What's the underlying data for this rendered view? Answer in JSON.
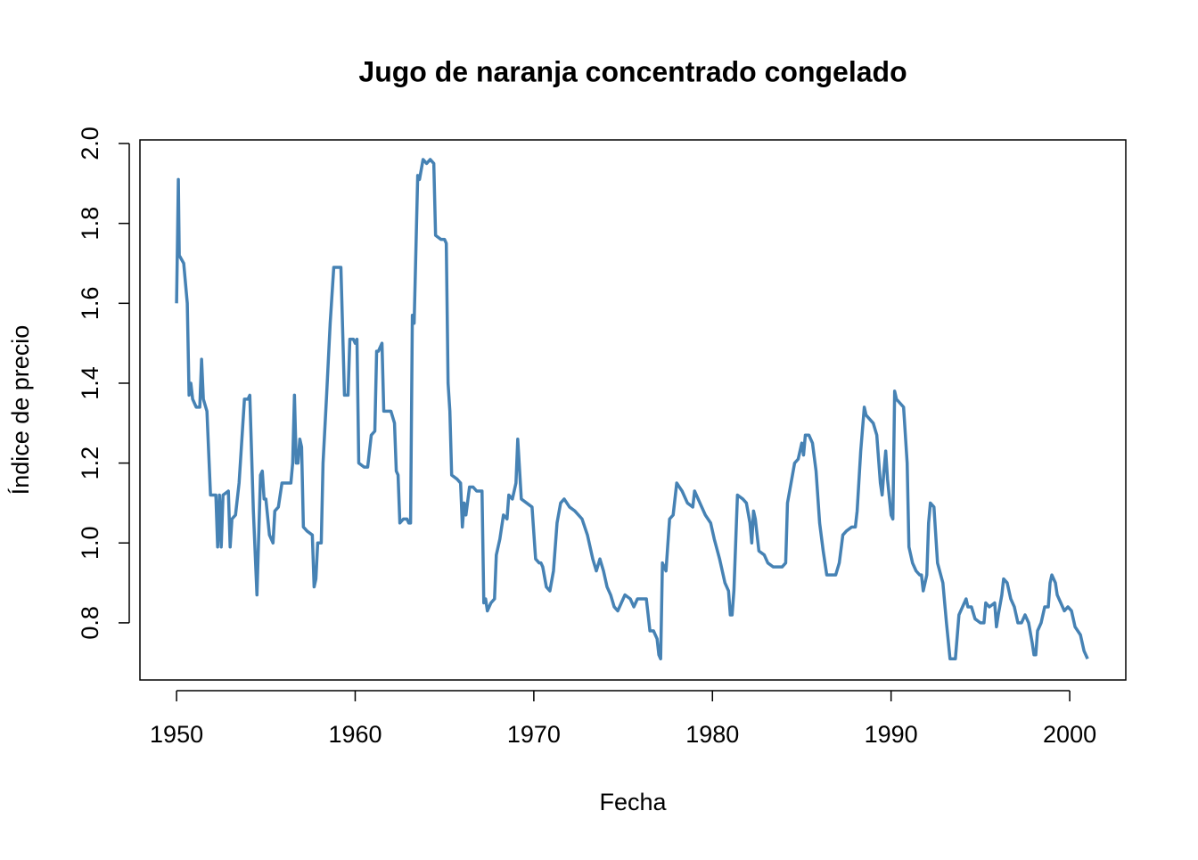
{
  "chart_data": {
    "type": "line",
    "title": "Jugo de naranja concentrado congelado",
    "x_label": "Fecha",
    "y_label": "Índice de precio",
    "x": [
      1950.0,
      1950.05,
      1950.1,
      1950.15,
      1950.4,
      1950.6,
      1950.7,
      1950.8,
      1950.9,
      1951.1,
      1951.3,
      1951.4,
      1951.5,
      1951.7,
      1951.9,
      1952.2,
      1952.3,
      1952.4,
      1952.5,
      1952.6,
      1952.9,
      1953.0,
      1953.1,
      1953.3,
      1953.5,
      1953.8,
      1954.0,
      1954.1,
      1954.3,
      1954.5,
      1954.7,
      1954.8,
      1954.9,
      1955.0,
      1955.2,
      1955.4,
      1955.5,
      1955.7,
      1955.9,
      1956.2,
      1956.4,
      1956.5,
      1956.6,
      1956.7,
      1956.8,
      1956.9,
      1957.0,
      1957.1,
      1957.3,
      1957.6,
      1957.7,
      1957.8,
      1957.9,
      1958.1,
      1958.2,
      1958.4,
      1958.6,
      1958.8,
      1959.2,
      1959.4,
      1959.6,
      1959.7,
      1959.9,
      1960.0,
      1960.1,
      1960.2,
      1960.5,
      1960.7,
      1960.9,
      1961.1,
      1961.2,
      1961.3,
      1961.5,
      1961.6,
      1962.0,
      1962.2,
      1962.3,
      1962.4,
      1962.5,
      1962.7,
      1962.9,
      1963.0,
      1963.1,
      1963.2,
      1963.3,
      1963.5,
      1963.6,
      1963.8,
      1964.0,
      1964.2,
      1964.4,
      1964.5,
      1964.8,
      1965.0,
      1965.1,
      1965.2,
      1965.3,
      1965.4,
      1965.7,
      1965.9,
      1966.0,
      1966.1,
      1966.2,
      1966.4,
      1966.6,
      1966.8,
      1967.1,
      1967.2,
      1967.3,
      1967.4,
      1967.6,
      1967.8,
      1967.9,
      1968.0,
      1968.1,
      1968.3,
      1968.5,
      1968.6,
      1968.8,
      1969.0,
      1969.1,
      1969.3,
      1969.6,
      1969.9,
      1970.1,
      1970.3,
      1970.4,
      1970.5,
      1970.7,
      1970.9,
      1971.1,
      1971.3,
      1971.5,
      1971.7,
      1972.0,
      1972.3,
      1972.5,
      1972.7,
      1973.0,
      1973.3,
      1973.5,
      1973.7,
      1973.9,
      1974.1,
      1974.3,
      1974.5,
      1974.7,
      1974.9,
      1975.1,
      1975.4,
      1975.6,
      1975.8,
      1976.0,
      1976.3,
      1976.5,
      1976.7,
      1976.9,
      1977.0,
      1977.1,
      1977.2,
      1977.4,
      1977.6,
      1977.8,
      1978.0,
      1978.3,
      1978.6,
      1978.9,
      1979.0,
      1979.3,
      1979.6,
      1979.9,
      1980.1,
      1980.4,
      1980.7,
      1980.9,
      1981.0,
      1981.1,
      1981.2,
      1981.4,
      1981.7,
      1981.9,
      1982.1,
      1982.2,
      1982.3,
      1982.4,
      1982.6,
      1982.9,
      1983.1,
      1983.4,
      1983.7,
      1983.9,
      1984.1,
      1984.2,
      1984.4,
      1984.6,
      1984.8,
      1985.0,
      1985.1,
      1985.2,
      1985.4,
      1985.6,
      1985.8,
      1986.0,
      1986.2,
      1986.4,
      1986.6,
      1986.9,
      1987.1,
      1987.3,
      1987.5,
      1987.8,
      1988.0,
      1988.1,
      1988.3,
      1988.5,
      1988.6,
      1988.8,
      1989.0,
      1989.2,
      1989.4,
      1989.5,
      1989.6,
      1989.7,
      1989.8,
      1990.0,
      1990.1,
      1990.2,
      1990.3,
      1990.5,
      1990.7,
      1990.9,
      1991.0,
      1991.2,
      1991.4,
      1991.6,
      1991.7,
      1991.8,
      1992.0,
      1992.1,
      1992.2,
      1992.4,
      1992.6,
      1992.9,
      1993.1,
      1993.3,
      1993.6,
      1993.8,
      1994.0,
      1994.2,
      1994.3,
      1994.5,
      1994.7,
      1995.0,
      1995.2,
      1995.3,
      1995.5,
      1995.8,
      1995.9,
      1996.0,
      1996.2,
      1996.3,
      1996.5,
      1996.7,
      1996.9,
      1997.1,
      1997.3,
      1997.5,
      1997.7,
      1997.9,
      1998.0,
      1998.1,
      1998.2,
      1998.4,
      1998.6,
      1998.8,
      1998.9,
      1999.0,
      1999.2,
      1999.3,
      1999.5,
      1999.7,
      1999.9,
      2000.1,
      2000.3,
      2000.6,
      2000.8,
      2001.0
    ],
    "series": [
      {
        "name": "Índice de precio",
        "color": "#4682b4",
        "values": [
          1.6,
          1.75,
          1.91,
          1.72,
          1.7,
          1.6,
          1.37,
          1.4,
          1.36,
          1.34,
          1.34,
          1.46,
          1.36,
          1.33,
          1.12,
          1.12,
          0.99,
          1.12,
          0.99,
          1.12,
          1.13,
          0.99,
          1.06,
          1.07,
          1.15,
          1.36,
          1.36,
          1.37,
          1.08,
          0.87,
          1.17,
          1.18,
          1.11,
          1.11,
          1.02,
          1.0,
          1.08,
          1.09,
          1.15,
          1.15,
          1.15,
          1.2,
          1.37,
          1.2,
          1.2,
          1.26,
          1.24,
          1.04,
          1.03,
          1.02,
          0.89,
          0.91,
          1.0,
          1.0,
          1.2,
          1.37,
          1.55,
          1.69,
          1.69,
          1.37,
          1.37,
          1.51,
          1.51,
          1.5,
          1.51,
          1.2,
          1.19,
          1.19,
          1.27,
          1.28,
          1.48,
          1.48,
          1.5,
          1.33,
          1.33,
          1.3,
          1.18,
          1.17,
          1.05,
          1.06,
          1.06,
          1.05,
          1.05,
          1.57,
          1.55,
          1.92,
          1.91,
          1.96,
          1.95,
          1.96,
          1.95,
          1.77,
          1.76,
          1.76,
          1.75,
          1.4,
          1.33,
          1.17,
          1.16,
          1.15,
          1.04,
          1.1,
          1.07,
          1.14,
          1.14,
          1.13,
          1.13,
          0.85,
          0.86,
          0.83,
          0.85,
          0.86,
          0.97,
          0.99,
          1.01,
          1.07,
          1.06,
          1.12,
          1.11,
          1.15,
          1.26,
          1.11,
          1.1,
          1.09,
          0.96,
          0.95,
          0.95,
          0.94,
          0.89,
          0.88,
          0.93,
          1.05,
          1.1,
          1.11,
          1.09,
          1.08,
          1.07,
          1.06,
          1.02,
          0.96,
          0.93,
          0.96,
          0.93,
          0.89,
          0.87,
          0.84,
          0.83,
          0.85,
          0.87,
          0.86,
          0.84,
          0.86,
          0.86,
          0.86,
          0.78,
          0.78,
          0.76,
          0.72,
          0.71,
          0.95,
          0.93,
          1.06,
          1.07,
          1.15,
          1.13,
          1.1,
          1.09,
          1.13,
          1.1,
          1.07,
          1.05,
          1.01,
          0.96,
          0.9,
          0.88,
          0.82,
          0.82,
          0.88,
          1.12,
          1.11,
          1.1,
          1.05,
          1.0,
          1.08,
          1.06,
          0.98,
          0.97,
          0.95,
          0.94,
          0.94,
          0.94,
          0.95,
          1.1,
          1.15,
          1.2,
          1.21,
          1.25,
          1.22,
          1.27,
          1.27,
          1.25,
          1.18,
          1.05,
          0.98,
          0.92,
          0.92,
          0.92,
          0.95,
          1.02,
          1.03,
          1.04,
          1.04,
          1.08,
          1.23,
          1.34,
          1.32,
          1.31,
          1.3,
          1.27,
          1.15,
          1.12,
          1.18,
          1.23,
          1.16,
          1.07,
          1.06,
          1.38,
          1.36,
          1.35,
          1.34,
          1.2,
          0.99,
          0.95,
          0.93,
          0.92,
          0.92,
          0.88,
          0.92,
          1.05,
          1.1,
          1.09,
          0.95,
          0.9,
          0.8,
          0.71,
          0.71,
          0.82,
          0.84,
          0.86,
          0.84,
          0.84,
          0.81,
          0.8,
          0.8,
          0.85,
          0.84,
          0.85,
          0.79,
          0.82,
          0.87,
          0.91,
          0.9,
          0.86,
          0.84,
          0.8,
          0.8,
          0.82,
          0.8,
          0.75,
          0.72,
          0.72,
          0.78,
          0.8,
          0.84,
          0.84,
          0.9,
          0.92,
          0.9,
          0.87,
          0.85,
          0.83,
          0.84,
          0.83,
          0.79,
          0.77,
          0.73,
          0.71
        ]
      }
    ],
    "xlim": [
      1947.95,
      2003.14
    ],
    "ylim": [
      0.657,
      2.009
    ],
    "xticks": [
      1950,
      1960,
      1970,
      1980,
      1990,
      2000
    ],
    "yticks": [
      0.8,
      {
        "value": 1.0,
        "label": "1.0"
      },
      1.2,
      1.4,
      1.6,
      1.8,
      {
        "value": 2.0,
        "label": "2.0"
      }
    ]
  }
}
